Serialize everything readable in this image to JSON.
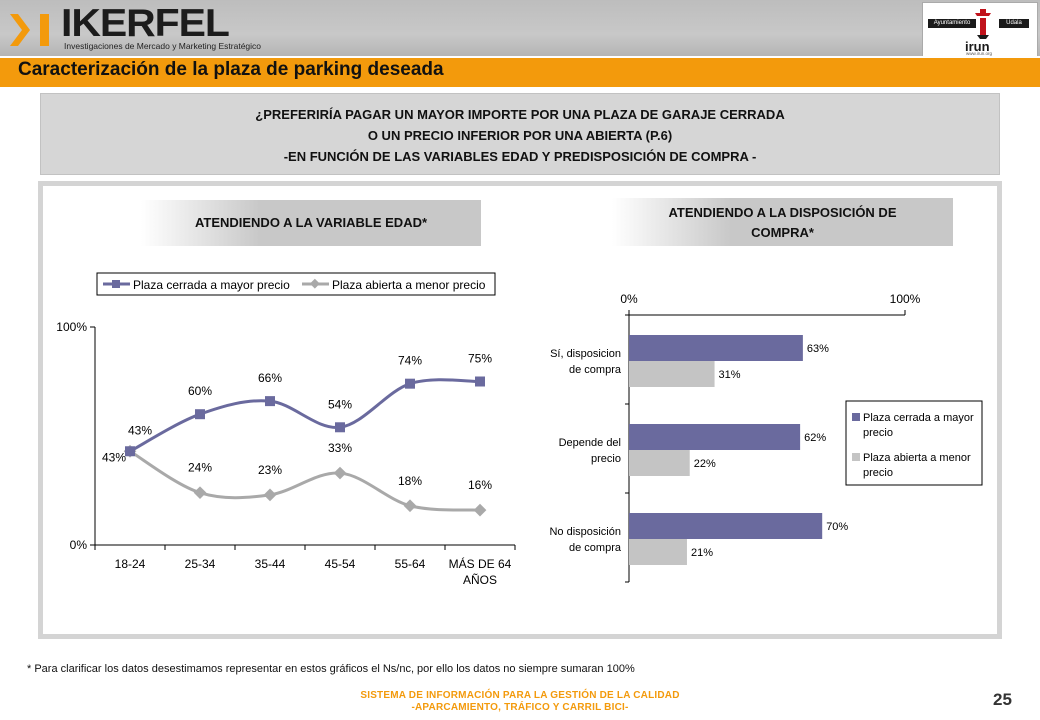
{
  "header": {
    "brand": "IKERFEL",
    "tagline": "Investigaciones de Mercado y Marketing Estratégico",
    "client_left": "Ayuntamiento",
    "client_right": "Udala",
    "client_name": "irun",
    "client_url": "www.irun.org"
  },
  "section_title": "Caracterización de la plaza de parking deseada",
  "question": {
    "line1": "¿PREFERIRÍA PAGAR UN MAYOR IMPORTE POR UNA PLAZA DE GARAJE CERRADA",
    "line2": "O UN PRECIO INFERIOR POR UNA ABIERTA (P.6)",
    "line3": "-EN FUNCIÓN DE LAS VARIABLES EDAD Y PREDISPOSICIÓN DE COMPRA -"
  },
  "panel_left_title": "ATENDIENDO A LA VARIABLE EDAD*",
  "panel_right_title_1": "ATENDIENDO A LA DISPOSICIÓN DE",
  "panel_right_title_2": "COMPRA*",
  "colors": {
    "accent": "#f39a0c",
    "series_cerrada": "#6a6a9e",
    "series_abierta": "#a9a9a9",
    "bar_abierta": "#c4c4c4"
  },
  "chart_data": [
    {
      "type": "line",
      "categories": [
        "18-24",
        "25-34",
        "35-44",
        "45-54",
        "55-64",
        "MÁS DE 64 AÑOS"
      ],
      "category_lines": [
        [
          "18-24"
        ],
        [
          "25-34"
        ],
        [
          "35-44"
        ],
        [
          "45-54"
        ],
        [
          "55-64"
        ],
        [
          "MÁS DE 64",
          "AÑOS"
        ]
      ],
      "series": [
        {
          "name": "Plaza cerrada a mayor precio",
          "values": [
            43,
            60,
            66,
            54,
            74,
            75
          ],
          "labels": [
            "43%",
            "60%",
            "66%",
            "54%",
            "74%",
            "75%"
          ]
        },
        {
          "name": "Plaza abierta a menor precio",
          "values": [
            43,
            24,
            23,
            33,
            18,
            16
          ],
          "labels": [
            "43%",
            "24%",
            "23%",
            "33%",
            "18%",
            "16%"
          ]
        }
      ],
      "ylim": [
        0,
        100
      ],
      "yticks": [
        "0%",
        "100%"
      ],
      "legend": "top"
    },
    {
      "type": "bar",
      "orientation": "horizontal",
      "categories": [
        "Sí, disposicion de compra",
        "Depende del precio",
        "No disposición de compra"
      ],
      "category_lines": [
        [
          "Sí, disposicion",
          "de compra"
        ],
        [
          "Depende del",
          "precio"
        ],
        [
          "No disposición",
          "de compra"
        ]
      ],
      "series": [
        {
          "name": "Plaza cerrada a mayor precio",
          "legend_lines": [
            "Plaza cerrada a mayor",
            "precio"
          ],
          "values": [
            63,
            62,
            70
          ],
          "labels": [
            "63%",
            "62%",
            "70%"
          ]
        },
        {
          "name": "Plaza abierta a menor precio",
          "legend_lines": [
            "Plaza abierta a menor",
            "precio"
          ],
          "values": [
            31,
            22,
            21
          ],
          "labels": [
            "31%",
            "22%",
            "21%"
          ]
        }
      ],
      "xlim": [
        0,
        100
      ],
      "xticks": [
        "0%",
        "100%"
      ],
      "legend": "right"
    }
  ],
  "footnote": "* Para clarificar los datos desestimamos representar en estos gráficos el Ns/nc, por ello los datos no siempre sumaran 100%",
  "footer": {
    "line1": "SISTEMA DE INFORMACIÓN PARA LA GESTIÓN DE LA CALIDAD",
    "line2": "-APARCAMIENTO, TRÁFICO Y CARRIL BICI-",
    "page": "25"
  }
}
